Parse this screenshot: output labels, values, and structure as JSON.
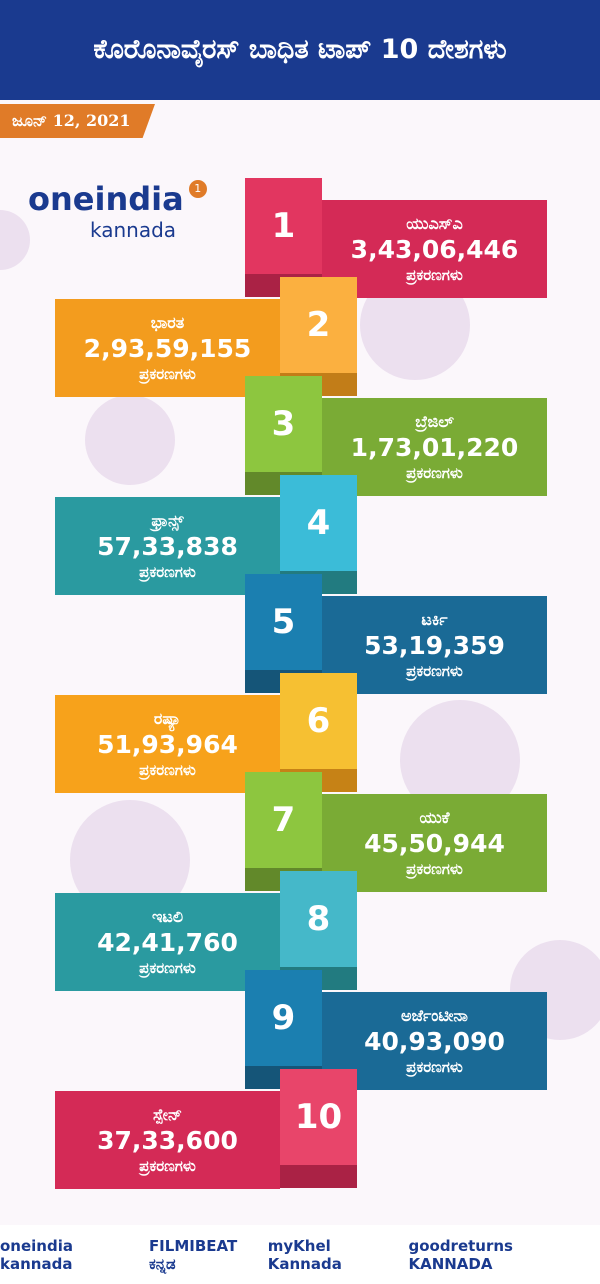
{
  "header": {
    "title": "ಕೊರೊನಾವೈರಸ್ ಬಾಧಿತ ಟಾಪ್ 10 ದೇಶಗಳು",
    "date": "ಜೂನ್ 12, 2021"
  },
  "logo": {
    "name": "oneindia",
    "sub": "kannada",
    "badge": "1"
  },
  "items": [
    {
      "rank": "1",
      "country": "ಯುಎಸ್ಎ",
      "cases": "3,43,06,446",
      "label": "ಪ್ರಕರಣಗಳು"
    },
    {
      "rank": "2",
      "country": "ಭಾರತ",
      "cases": "2,93,59,155",
      "label": "ಪ್ರಕರಣಗಳು"
    },
    {
      "rank": "3",
      "country": "ಬ್ರೆಜಿಲ್",
      "cases": "1,73,01,220",
      "label": "ಪ್ರಕರಣಗಳು"
    },
    {
      "rank": "4",
      "country": "ಫ್ರಾನ್ಸ್",
      "cases": "57,33,838",
      "label": "ಪ್ರಕರಣಗಳು"
    },
    {
      "rank": "5",
      "country": "ಟರ್ಕಿ",
      "cases": "53,19,359",
      "label": "ಪ್ರಕರಣಗಳು"
    },
    {
      "rank": "6",
      "country": "ರಷ್ಯಾ",
      "cases": "51,93,964",
      "label": "ಪ್ರಕರಣಗಳು"
    },
    {
      "rank": "7",
      "country": "ಯುಕೆ",
      "cases": "45,50,944",
      "label": "ಪ್ರಕರಣಗಳು"
    },
    {
      "rank": "8",
      "country": "ಇಟಲಿ",
      "cases": "42,41,760",
      "label": "ಪ್ರಕರಣಗಳು"
    },
    {
      "rank": "9",
      "country": "ಅರ್ಜೆಂಟೀನಾ",
      "cases": "40,93,090",
      "label": "ಪ್ರಕರಣಗಳು"
    },
    {
      "rank": "10",
      "country": "ಸ್ಪೇನ್",
      "cases": "37,33,600",
      "label": "ಪ್ರಕರಣಗಳು"
    }
  ],
  "footer": {
    "brands": [
      "oneindia kannada",
      "FILMIBEAT ಕನ್ನಡ",
      "myKhel Kannada",
      "goodreturns KANNADA"
    ]
  }
}
